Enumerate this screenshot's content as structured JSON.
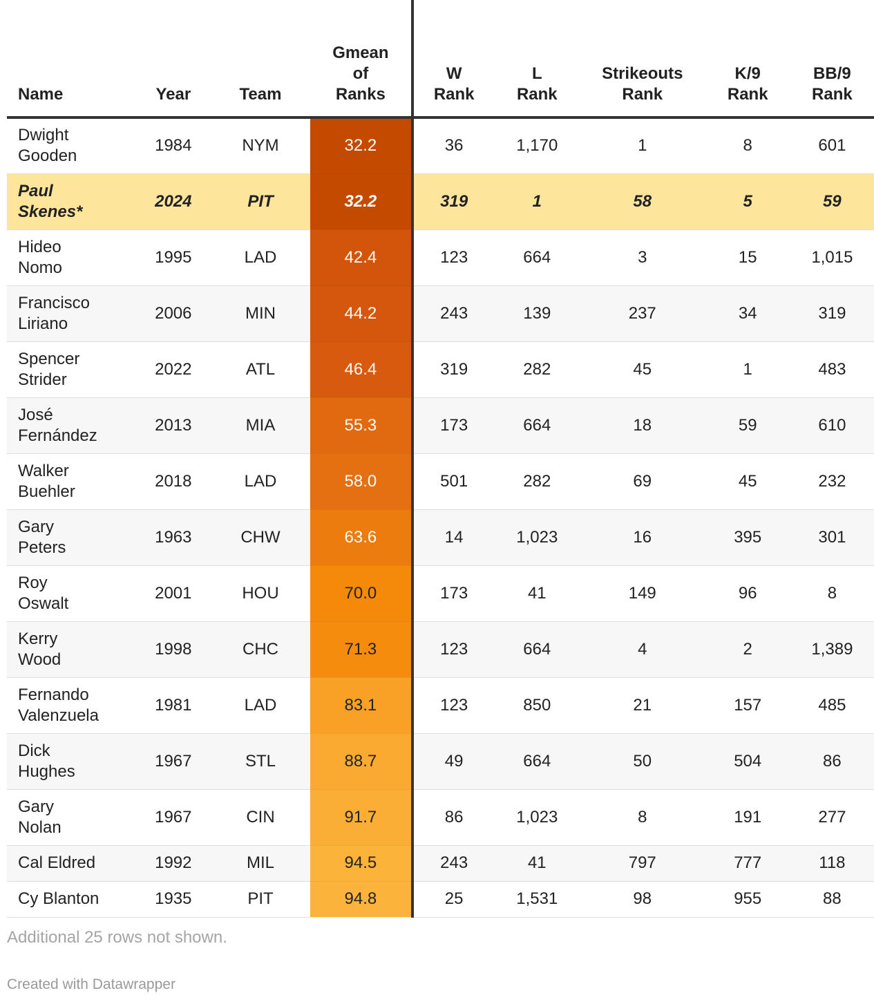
{
  "chart_data": {
    "type": "table",
    "columns": [
      "Name",
      "Year",
      "Team",
      "Gmean of Ranks",
      "W Rank",
      "L Rank",
      "Strikeouts Rank",
      "K/9 Rank",
      "BB/9 Rank"
    ],
    "header_lines": [
      [
        "Name"
      ],
      [
        "Year"
      ],
      [
        "Team"
      ],
      [
        "Gmean",
        "of",
        "Ranks"
      ],
      [
        "W",
        "Rank"
      ],
      [
        "L",
        "Rank"
      ],
      [
        "Strikeouts",
        "Rank"
      ],
      [
        "K/9",
        "Rank"
      ],
      [
        "BB/9",
        "Rank"
      ]
    ],
    "rows": [
      {
        "name": [
          "Dwight",
          "Gooden"
        ],
        "year": "1984",
        "team": "NYM",
        "gmean": "32.2",
        "w": "36",
        "l": "1,170",
        "so": "1",
        "k9": "8",
        "bb9": "601"
      },
      {
        "name": [
          "Paul",
          "Skenes*"
        ],
        "year": "2024",
        "team": "PIT",
        "gmean": "32.2",
        "w": "319",
        "l": "1",
        "so": "58",
        "k9": "5",
        "bb9": "59",
        "highlight": true
      },
      {
        "name": [
          "Hideo",
          "Nomo"
        ],
        "year": "1995",
        "team": "LAD",
        "gmean": "42.4",
        "w": "123",
        "l": "664",
        "so": "3",
        "k9": "15",
        "bb9": "1,015"
      },
      {
        "name": [
          "Francisco",
          "Liriano"
        ],
        "year": "2006",
        "team": "MIN",
        "gmean": "44.2",
        "w": "243",
        "l": "139",
        "so": "237",
        "k9": "34",
        "bb9": "319"
      },
      {
        "name": [
          "Spencer",
          "Strider"
        ],
        "year": "2022",
        "team": "ATL",
        "gmean": "46.4",
        "w": "319",
        "l": "282",
        "so": "45",
        "k9": "1",
        "bb9": "483"
      },
      {
        "name": [
          "José",
          "Fernández"
        ],
        "year": "2013",
        "team": "MIA",
        "gmean": "55.3",
        "w": "173",
        "l": "664",
        "so": "18",
        "k9": "59",
        "bb9": "610"
      },
      {
        "name": [
          "Walker",
          "Buehler"
        ],
        "year": "2018",
        "team": "LAD",
        "gmean": "58.0",
        "w": "501",
        "l": "282",
        "so": "69",
        "k9": "45",
        "bb9": "232"
      },
      {
        "name": [
          "Gary",
          "Peters"
        ],
        "year": "1963",
        "team": "CHW",
        "gmean": "63.6",
        "w": "14",
        "l": "1,023",
        "so": "16",
        "k9": "395",
        "bb9": "301"
      },
      {
        "name": [
          "Roy",
          "Oswalt"
        ],
        "year": "2001",
        "team": "HOU",
        "gmean": "70.0",
        "w": "173",
        "l": "41",
        "so": "149",
        "k9": "96",
        "bb9": "8"
      },
      {
        "name": [
          "Kerry",
          "Wood"
        ],
        "year": "1998",
        "team": "CHC",
        "gmean": "71.3",
        "w": "123",
        "l": "664",
        "so": "4",
        "k9": "2",
        "bb9": "1,389"
      },
      {
        "name": [
          "Fernando",
          "Valenzuela"
        ],
        "year": "1981",
        "team": "LAD",
        "gmean": "83.1",
        "w": "123",
        "l": "850",
        "so": "21",
        "k9": "157",
        "bb9": "485"
      },
      {
        "name": [
          "Dick",
          "Hughes"
        ],
        "year": "1967",
        "team": "STL",
        "gmean": "88.7",
        "w": "49",
        "l": "664",
        "so": "50",
        "k9": "504",
        "bb9": "86"
      },
      {
        "name": [
          "Gary",
          "Nolan"
        ],
        "year": "1967",
        "team": "CIN",
        "gmean": "91.7",
        "w": "86",
        "l": "1,023",
        "so": "8",
        "k9": "191",
        "bb9": "277"
      },
      {
        "name": [
          "Cal Eldred"
        ],
        "year": "1992",
        "team": "MIL",
        "gmean": "94.5",
        "w": "243",
        "l": "41",
        "so": "797",
        "k9": "777",
        "bb9": "118"
      },
      {
        "name": [
          "Cy Blanton"
        ],
        "year": "1935",
        "team": "PIT",
        "gmean": "94.8",
        "w": "25",
        "l": "1,531",
        "so": "98",
        "k9": "955",
        "bb9": "88"
      }
    ],
    "gmean_colors": {
      "scale_stops": [
        "#c44a00",
        "#d6570e",
        "#e36e12",
        "#f5890a",
        "#f9a024",
        "#fbb33b"
      ],
      "light_text": "#ffffff",
      "dark_text": "#222222"
    },
    "highlight_color": "#fde59b"
  },
  "footer": {
    "note": "Additional 25 rows not shown.",
    "credit": "Created with Datawrapper"
  }
}
